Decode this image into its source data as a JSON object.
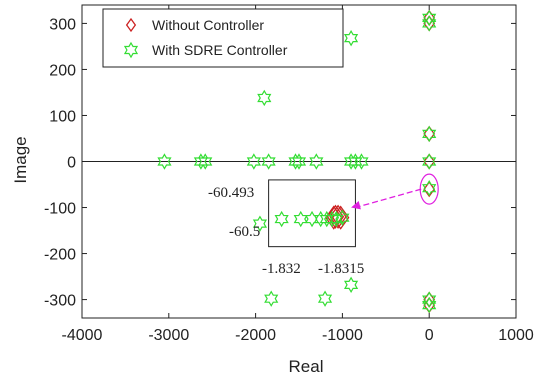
{
  "chart_data": {
    "type": "scatter",
    "xlabel": "Real",
    "ylabel": "Image",
    "xlim": [
      -4000,
      1000
    ],
    "ylim": [
      -340,
      340
    ],
    "xticks": [
      -4000,
      -3000,
      -2000,
      -1000,
      0,
      1000
    ],
    "yticks": [
      -300,
      -200,
      -100,
      0,
      100,
      200,
      300
    ],
    "xtick_labels": [
      "-4000",
      "-3000",
      "-2000",
      "-1000",
      "0",
      "1000"
    ],
    "ytick_labels": [
      "-300",
      "-200",
      "-100",
      "0",
      "100",
      "200",
      "300"
    ],
    "grid": false,
    "legend": "top-left",
    "series": [
      {
        "name": "Without Controller",
        "marker": "diamond",
        "color": "#cc2222",
        "points": [
          [
            0,
            300
          ],
          [
            0,
            312
          ],
          [
            0,
            60
          ],
          [
            0,
            0
          ],
          [
            0,
            -60
          ],
          [
            -1020,
            -122
          ],
          [
            -1050,
            -120
          ],
          [
            -1080,
            -120
          ],
          [
            -1100,
            -122
          ],
          [
            0,
            -300
          ],
          [
            0,
            -312
          ]
        ]
      },
      {
        "name": "With SDRE Controller",
        "marker": "hexagram",
        "color": "#33dd33",
        "points": [
          [
            0,
            312
          ],
          [
            0,
            300
          ],
          [
            -900,
            268
          ],
          [
            -1900,
            138
          ],
          [
            0,
            60
          ],
          [
            0,
            0
          ],
          [
            0,
            -58
          ],
          [
            -3050,
            0
          ],
          [
            -2630,
            0
          ],
          [
            -2580,
            0
          ],
          [
            -2020,
            0
          ],
          [
            -1850,
            0
          ],
          [
            -1540,
            0
          ],
          [
            -1500,
            0
          ],
          [
            -1300,
            0
          ],
          [
            -900,
            0
          ],
          [
            -850,
            0
          ],
          [
            -780,
            0
          ],
          [
            -1950,
            -135
          ],
          [
            -1700,
            -125
          ],
          [
            -1480,
            -125
          ],
          [
            -1350,
            -125
          ],
          [
            -1250,
            -125
          ],
          [
            -1180,
            -125
          ],
          [
            -1120,
            -125
          ],
          [
            -1070,
            -125
          ],
          [
            -1000,
            -122
          ],
          [
            -1820,
            -298
          ],
          [
            -1200,
            -298
          ],
          [
            -900,
            -268
          ],
          [
            0,
            -300
          ],
          [
            0,
            -312
          ]
        ]
      }
    ],
    "annotations": {
      "zoom_y_top": "-60.493",
      "zoom_y_bottom": "-60.5",
      "zoom_x_left": "-1.832",
      "zoom_x_right": "-1.8315"
    },
    "zoom_box": {
      "x": [
        -1850,
        -850
      ],
      "y": [
        -185,
        -40
      ]
    },
    "arrow": {
      "from": [
        0,
        -60
      ],
      "to": [
        -900,
        -100
      ],
      "color": "#e020e0"
    },
    "highlight": {
      "center": [
        0,
        -60
      ],
      "color": "#e020e0"
    }
  }
}
